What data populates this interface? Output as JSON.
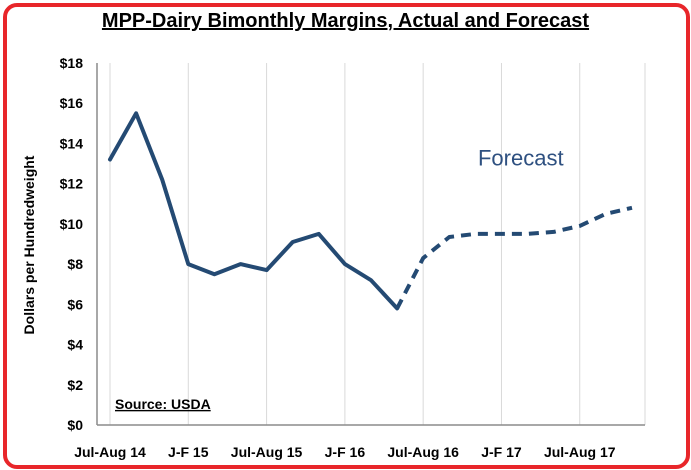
{
  "chart_data": {
    "type": "line",
    "title": "MPP-Dairy Bimonthly Margins, Actual and Forecast",
    "ylabel": "Dollars per Hundredweight",
    "xlabel": "",
    "ylim": [
      0,
      18
    ],
    "y_ticks": [
      "$0",
      "$2",
      "$4",
      "$6",
      "$8",
      "$10",
      "$12",
      "$14",
      "$16",
      "$18"
    ],
    "x_tick_labels": [
      "Jul-Aug 14",
      "J-F 15",
      "Jul-Aug 15",
      "J-F 16",
      "Jul-Aug 16",
      "J-F 17",
      "Jul-Aug 17"
    ],
    "x_tick_positions": [
      0,
      3,
      6,
      9,
      12,
      15,
      18
    ],
    "x_range": [
      0,
      20.5
    ],
    "grid": "vertical",
    "series": [
      {
        "style": "solid",
        "x": [
          0,
          1,
          2,
          3,
          4,
          5,
          6,
          7,
          8,
          9,
          10,
          11
        ],
        "values": [
          13.2,
          15.5,
          12.2,
          8.0,
          7.5,
          8.0,
          7.7,
          9.1,
          9.5,
          8.0,
          7.2,
          5.8
        ]
      },
      {
        "style": "dashed",
        "x": [
          11,
          12,
          13,
          14,
          15,
          16,
          17,
          18,
          19,
          20
        ],
        "values": [
          5.8,
          8.3,
          9.35,
          9.5,
          9.5,
          9.5,
          9.6,
          9.9,
          10.5,
          10.8
        ]
      }
    ],
    "annotations": [
      {
        "text": "Forecast",
        "x": 14.1,
        "y": 12.9,
        "color": "#2e5080"
      },
      {
        "text": "Source:  USDA",
        "x": 0.3,
        "y": 0.6
      }
    ],
    "line_color": "#244a73",
    "grid_color": "#d9d9d9",
    "axis_color": "#8c8c8c",
    "frame_color": "#e8262a"
  }
}
